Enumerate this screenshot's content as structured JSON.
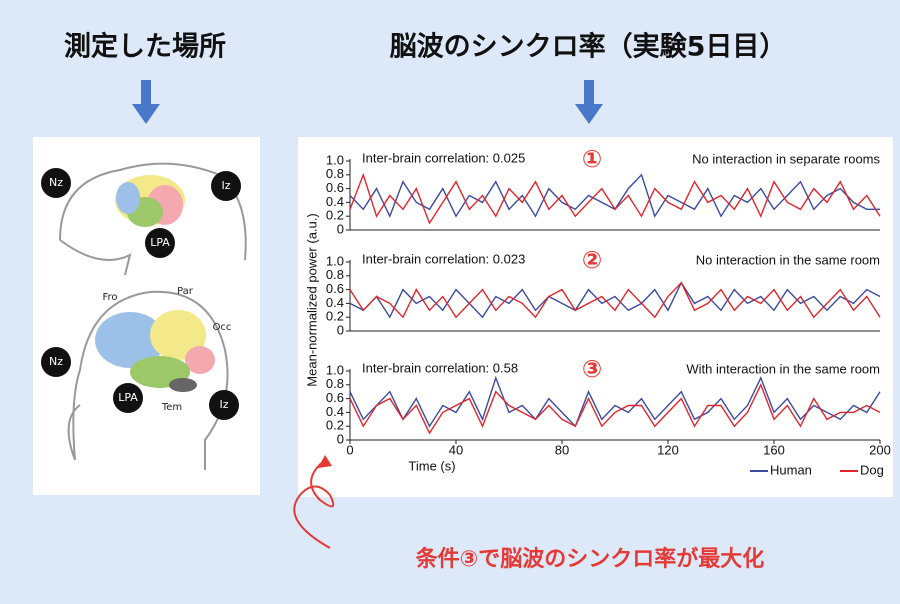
{
  "header": {
    "left_title": "測定した場所",
    "right_title": "脳波のシンクロ率（実験5日目）"
  },
  "diagram": {
    "dog_labels": [
      "Nz",
      "Iz",
      "LPA"
    ],
    "human_labels": [
      "Fro",
      "Par",
      "Occ",
      "Nz",
      "LPA",
      "Tem",
      "Iz"
    ]
  },
  "annotation": "条件③で脳波のシンクロ率が最大化",
  "chart_data": [
    {
      "type": "line",
      "marker": "①",
      "annotation": "Inter-brain correlation: 0.025",
      "condition": "No interaction in separate rooms",
      "x": [
        0,
        5,
        10,
        15,
        20,
        25,
        30,
        35,
        40,
        45,
        50,
        55,
        60,
        65,
        70,
        75,
        80,
        85,
        90,
        95,
        100,
        105,
        110,
        115,
        120,
        125,
        130,
        135,
        140,
        145,
        150,
        155,
        160,
        165,
        170,
        175,
        180,
        185,
        190,
        195,
        200
      ],
      "xlim": [
        0,
        200
      ],
      "ylim": [
        0,
        1
      ],
      "yticks": [
        0,
        0.2,
        0.4,
        0.6,
        0.8,
        {
          "value": 1,
          "label": "1.0"
        }
      ],
      "series": [
        {
          "color": "#3b4ba0",
          "values": [
            0.5,
            0.3,
            0.6,
            0.2,
            0.7,
            0.4,
            0.3,
            0.6,
            0.2,
            0.5,
            0.4,
            0.7,
            0.3,
            0.5,
            0.2,
            0.6,
            0.4,
            0.3,
            0.5,
            0.4,
            0.3,
            0.6,
            0.8,
            0.2,
            0.5,
            0.4,
            0.3,
            0.6,
            0.2,
            0.5,
            0.4,
            0.6,
            0.3,
            0.5,
            0.7,
            0.3,
            0.5,
            0.6,
            0.4,
            0.3,
            0.3
          ]
        },
        {
          "color": "#e0262a",
          "values": [
            0.3,
            0.8,
            0.2,
            0.5,
            0.3,
            0.6,
            0.1,
            0.4,
            0.7,
            0.3,
            0.5,
            0.2,
            0.6,
            0.4,
            0.7,
            0.3,
            0.5,
            0.2,
            0.4,
            0.6,
            0.3,
            0.5,
            0.2,
            0.6,
            0.4,
            0.3,
            0.7,
            0.4,
            0.5,
            0.3,
            0.6,
            0.2,
            0.7,
            0.4,
            0.3,
            0.6,
            0.4,
            0.7,
            0.3,
            0.5,
            0.2
          ]
        }
      ]
    },
    {
      "type": "line",
      "marker": "②",
      "annotation": "Inter-brain correlation: 0.023",
      "condition": "No interaction in the same room",
      "y_label": "Mean-normalized power (a.u.)",
      "x": [
        0,
        5,
        10,
        15,
        20,
        25,
        30,
        35,
        40,
        45,
        50,
        55,
        60,
        65,
        70,
        75,
        80,
        85,
        90,
        95,
        100,
        105,
        110,
        115,
        120,
        125,
        130,
        135,
        140,
        145,
        150,
        155,
        160,
        165,
        170,
        175,
        180,
        185,
        190,
        195,
        200
      ],
      "xlim": [
        0,
        200
      ],
      "ylim": [
        0,
        1
      ],
      "yticks": [
        0,
        0.2,
        0.4,
        0.6,
        0.8,
        {
          "value": 1,
          "label": "1.0"
        }
      ],
      "series": [
        {
          "color": "#3b4ba0",
          "values": [
            0.4,
            0.3,
            0.5,
            0.2,
            0.6,
            0.4,
            0.5,
            0.3,
            0.6,
            0.4,
            0.2,
            0.5,
            0.4,
            0.6,
            0.3,
            0.5,
            0.4,
            0.3,
            0.6,
            0.4,
            0.5,
            0.3,
            0.4,
            0.6,
            0.3,
            0.7,
            0.4,
            0.5,
            0.3,
            0.6,
            0.4,
            0.5,
            0.3,
            0.6,
            0.4,
            0.5,
            0.3,
            0.5,
            0.4,
            0.6,
            0.5
          ]
        },
        {
          "color": "#e0262a",
          "values": [
            0.6,
            0.3,
            0.5,
            0.4,
            0.2,
            0.6,
            0.3,
            0.5,
            0.2,
            0.4,
            0.6,
            0.3,
            0.5,
            0.4,
            0.2,
            0.5,
            0.6,
            0.3,
            0.4,
            0.5,
            0.3,
            0.6,
            0.4,
            0.2,
            0.5,
            0.7,
            0.3,
            0.4,
            0.6,
            0.3,
            0.5,
            0.4,
            0.6,
            0.3,
            0.5,
            0.2,
            0.4,
            0.6,
            0.3,
            0.5,
            0.2
          ]
        }
      ]
    },
    {
      "type": "line",
      "marker": "③",
      "annotation": "Inter-brain correlation: 0.58",
      "condition": "With interaction in the same room",
      "x_label": "Time (s)",
      "x": [
        0,
        5,
        10,
        15,
        20,
        25,
        30,
        35,
        40,
        45,
        50,
        55,
        60,
        65,
        70,
        75,
        80,
        85,
        90,
        95,
        100,
        105,
        110,
        115,
        120,
        125,
        130,
        135,
        140,
        145,
        150,
        155,
        160,
        165,
        170,
        175,
        180,
        185,
        190,
        195,
        200
      ],
      "xlim": [
        0,
        200
      ],
      "xticks": [
        0,
        40,
        80,
        120,
        160,
        200
      ],
      "ylim": [
        0,
        1
      ],
      "yticks": [
        0,
        0.2,
        0.4,
        0.6,
        0.8,
        {
          "value": 1,
          "label": "1.0"
        }
      ],
      "series": [
        {
          "name": "Human",
          "color": "#3b4ba0",
          "values": [
            0.7,
            0.3,
            0.5,
            0.7,
            0.3,
            0.6,
            0.2,
            0.5,
            0.4,
            0.7,
            0.3,
            0.9,
            0.4,
            0.5,
            0.3,
            0.6,
            0.4,
            0.2,
            0.7,
            0.3,
            0.5,
            0.4,
            0.6,
            0.3,
            0.5,
            0.7,
            0.3,
            0.4,
            0.6,
            0.3,
            0.5,
            0.9,
            0.4,
            0.6,
            0.3,
            0.5,
            0.4,
            0.3,
            0.5,
            0.4,
            0.7
          ]
        },
        {
          "name": "Dog",
          "color": "#e0262a",
          "values": [
            0.6,
            0.2,
            0.5,
            0.6,
            0.3,
            0.5,
            0.1,
            0.4,
            0.5,
            0.6,
            0.2,
            0.7,
            0.5,
            0.4,
            0.3,
            0.5,
            0.3,
            0.2,
            0.6,
            0.2,
            0.4,
            0.5,
            0.5,
            0.2,
            0.4,
            0.6,
            0.2,
            0.5,
            0.5,
            0.2,
            0.4,
            0.8,
            0.3,
            0.5,
            0.2,
            0.6,
            0.3,
            0.4,
            0.4,
            0.5,
            0.4
          ]
        }
      ]
    }
  ]
}
